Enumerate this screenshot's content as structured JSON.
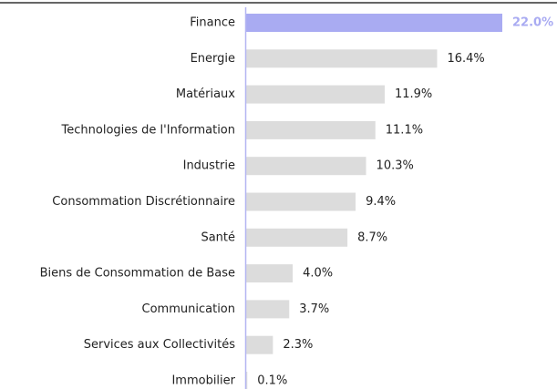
{
  "chart_data": {
    "type": "bar",
    "orientation": "horizontal",
    "categories": [
      "Finance",
      "Energie",
      "Matériaux",
      "Technologies de l'Information",
      "Industrie",
      "Consommation Discrétionnaire",
      "Santé",
      "Biens de Consommation de Base",
      "Communication",
      "Services aux Collectivités",
      "Immobilier"
    ],
    "values": [
      22.0,
      16.4,
      11.9,
      11.1,
      10.3,
      9.4,
      8.7,
      4.0,
      3.7,
      2.3,
      0.1
    ],
    "value_labels": [
      "22.0%",
      "16.4%",
      "11.9%",
      "11.1%",
      "10.3%",
      "9.4%",
      "8.7%",
      "4.0%",
      "3.7%",
      "2.3%",
      "0.1%"
    ],
    "color": "#dcdcdc",
    "colors": [
      "#a9abf2",
      "#dcdcdc",
      "#dcdcdc",
      "#dcdcdc",
      "#dcdcdc",
      "#dcdcdc",
      "#dcdcdc",
      "#dcdcdc",
      "#dcdcdc",
      "#dcdcdc",
      "#dcdcdc"
    ],
    "xlim": [
      0,
      22.0
    ]
  }
}
